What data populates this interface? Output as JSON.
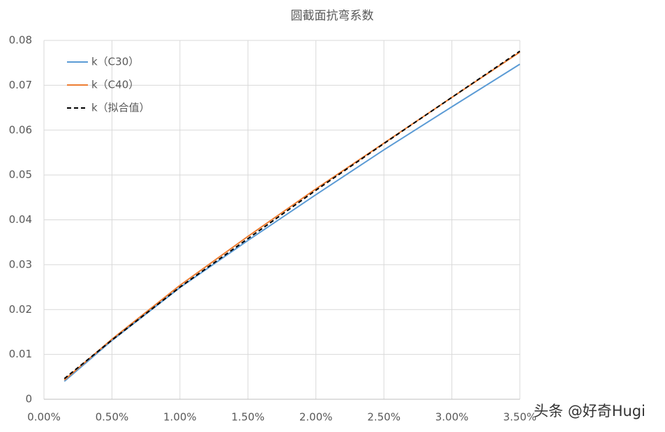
{
  "chart_data": {
    "type": "line",
    "title": "圆截面抗弯系数",
    "x": [
      0.15,
      0.5,
      1.0,
      1.5,
      2.0,
      2.5,
      3.0,
      3.5
    ],
    "series": [
      {
        "name": "k（C30）",
        "color": "#5b9bd5",
        "values": [
          0.004,
          0.0131,
          0.0249,
          0.0354,
          0.0456,
          0.0556,
          0.0652,
          0.0747
        ]
      },
      {
        "name": "k（C40）",
        "color": "#ed7d31",
        "values": [
          0.0043,
          0.0134,
          0.0254,
          0.0363,
          0.0469,
          0.0571,
          0.0673,
          0.0774
        ]
      },
      {
        "name": "k（拟合值）",
        "color": "#000000",
        "dashed": true,
        "values": [
          0.0046,
          0.0132,
          0.025,
          0.0358,
          0.0466,
          0.057,
          0.0673,
          0.0776
        ]
      }
    ],
    "xlim": [
      0,
      3.5
    ],
    "xticks": [
      {
        "value": 0,
        "label": "0.00%"
      },
      {
        "value": 0.5,
        "label": "0.50%"
      },
      {
        "value": 1.0,
        "label": "1.00%"
      },
      {
        "value": 1.5,
        "label": "1.50%"
      },
      {
        "value": 2.0,
        "label": "2.00%"
      },
      {
        "value": 2.5,
        "label": "2.50%"
      },
      {
        "value": 3.0,
        "label": "3.00%"
      },
      {
        "value": 3.5,
        "label": "3.50%"
      }
    ],
    "ylim": [
      0,
      0.08
    ],
    "yticks": [
      0,
      0.01,
      0.02,
      0.03,
      0.04,
      0.05,
      0.06,
      0.07,
      0.08
    ],
    "grid": true,
    "legend": "upper-left",
    "watermark": "头条 @好奇Hugi"
  }
}
